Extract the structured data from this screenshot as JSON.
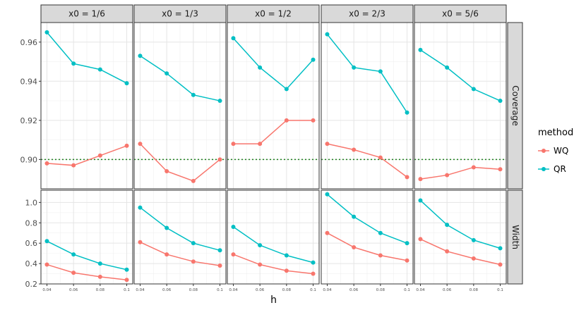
{
  "chart_data": {
    "type": "line",
    "facet_columns": [
      "x0 = 1/6",
      "x0 = 1/3",
      "x0 = 1/2",
      "x0 = 2/3",
      "x0 = 5/6"
    ],
    "facet_rows": [
      {
        "name": "Coverage",
        "ylim": [
          0.885,
          0.97
        ],
        "yticks": [
          0.9,
          0.92,
          0.94,
          0.96
        ],
        "ytick_labels": [
          "0.90",
          "0.92",
          "0.94",
          "0.96"
        ],
        "reference_line": 0.9
      },
      {
        "name": "Width",
        "ylim": [
          0.2,
          1.12
        ],
        "yticks": [
          0.2,
          0.4,
          0.6,
          0.8,
          1.0
        ],
        "ytick_labels": [
          "0.2",
          "0.4",
          "0.6",
          "0.8",
          "1.0"
        ]
      }
    ],
    "x": [
      0.04,
      0.06,
      0.08,
      0.1
    ],
    "x_tick_labels": [
      "0.04",
      "0.06",
      "0.08",
      "0.1"
    ],
    "xlim": [
      0.0355,
      0.1045
    ],
    "xlabel": "h",
    "legend": {
      "title": "method",
      "position": "right",
      "entries": [
        "WQ",
        "QR"
      ]
    },
    "colors": {
      "WQ": "#F8766D",
      "QR": "#00BFC4",
      "reference": "#1a7f1a"
    },
    "grid": true,
    "series": [
      {
        "name": "WQ",
        "panels": {
          "Coverage": [
            [
              0.898,
              0.897,
              0.902,
              0.907
            ],
            [
              0.908,
              0.894,
              0.889,
              0.9
            ],
            [
              0.908,
              0.908,
              0.92,
              0.92
            ],
            [
              0.908,
              0.905,
              0.901,
              0.891
            ],
            [
              0.89,
              0.892,
              0.896,
              0.895
            ]
          ],
          "Width": [
            [
              0.39,
              0.31,
              0.27,
              0.24
            ],
            [
              0.61,
              0.49,
              0.42,
              0.38
            ],
            [
              0.49,
              0.39,
              0.33,
              0.3
            ],
            [
              0.7,
              0.56,
              0.48,
              0.43
            ],
            [
              0.64,
              0.52,
              0.45,
              0.39
            ]
          ]
        }
      },
      {
        "name": "QR",
        "panels": {
          "Coverage": [
            [
              0.965,
              0.949,
              0.946,
              0.939
            ],
            [
              0.953,
              0.944,
              0.933,
              0.93
            ],
            [
              0.962,
              0.947,
              0.936,
              0.951
            ],
            [
              0.964,
              0.947,
              0.945,
              0.924
            ],
            [
              0.956,
              0.947,
              0.936,
              0.93
            ]
          ],
          "Width": [
            [
              0.62,
              0.49,
              0.4,
              0.34
            ],
            [
              0.95,
              0.75,
              0.6,
              0.53
            ],
            [
              0.76,
              0.58,
              0.48,
              0.41
            ],
            [
              1.08,
              0.86,
              0.7,
              0.6
            ],
            [
              1.02,
              0.78,
              0.63,
              0.55
            ]
          ]
        }
      }
    ]
  }
}
